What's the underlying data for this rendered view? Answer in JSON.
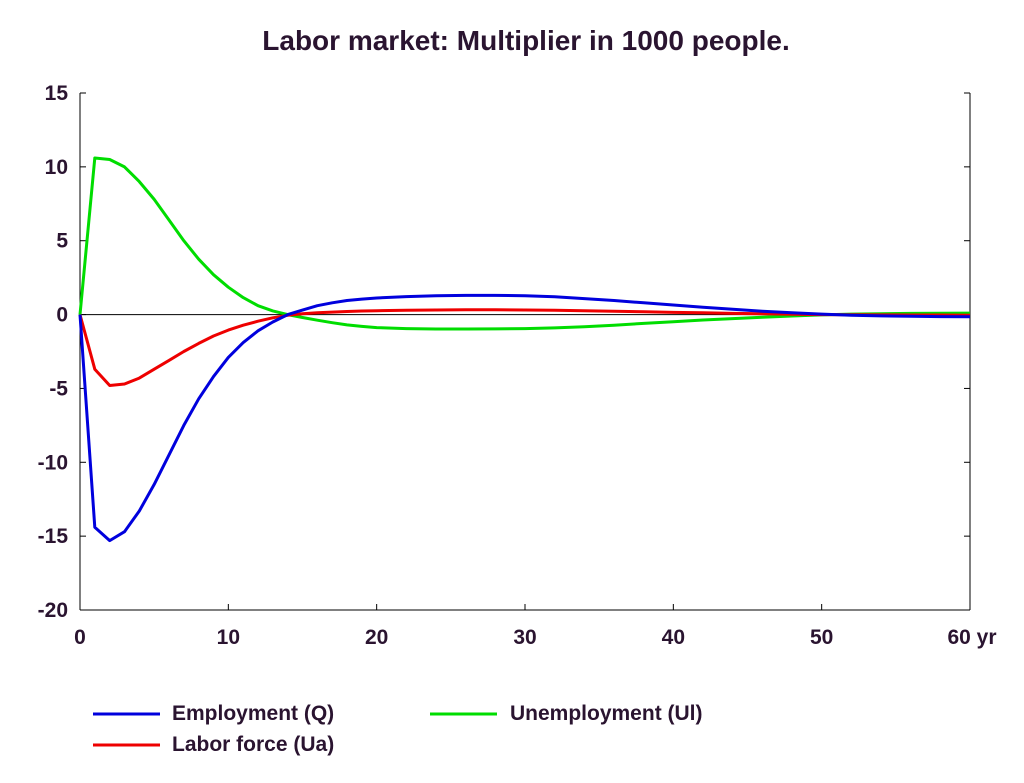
{
  "chart_data": {
    "type": "line",
    "title": "Labor market: Multiplier in 1000 people.",
    "xlabel": "",
    "ylabel": "",
    "xlim": [
      0,
      60
    ],
    "ylim": [
      -20,
      15
    ],
    "x_ticks": [
      "0",
      "10",
      "20",
      "30",
      "40",
      "50",
      "60 yr"
    ],
    "y_ticks": [
      "15",
      "10",
      "5",
      "0",
      "-5",
      "-10",
      "-15",
      "-20"
    ],
    "grid": false,
    "legend_position": "bottom-left",
    "x": [
      0,
      1,
      2,
      3,
      4,
      5,
      6,
      7,
      8,
      9,
      10,
      11,
      12,
      13,
      14,
      15,
      16,
      17,
      18,
      19,
      20,
      22,
      24,
      26,
      28,
      30,
      32,
      34,
      36,
      38,
      40,
      42,
      44,
      46,
      48,
      50,
      52,
      54,
      56,
      58,
      60
    ],
    "series": [
      {
        "name": "Employment (Q)",
        "color": "#0000dd",
        "values": [
          0,
          -14.4,
          -15.3,
          -14.7,
          -13.3,
          -11.5,
          -9.5,
          -7.5,
          -5.7,
          -4.2,
          -2.9,
          -1.9,
          -1.1,
          -0.5,
          0.0,
          0.3,
          0.6,
          0.8,
          0.95,
          1.05,
          1.12,
          1.22,
          1.28,
          1.3,
          1.3,
          1.28,
          1.2,
          1.08,
          0.95,
          0.8,
          0.65,
          0.5,
          0.36,
          0.23,
          0.12,
          0.03,
          -0.04,
          -0.09,
          -0.12,
          -0.14,
          -0.15
        ]
      },
      {
        "name": "Labor force (Ua)",
        "color": "#ee0000",
        "values": [
          0,
          -3.7,
          -4.8,
          -4.7,
          -4.3,
          -3.7,
          -3.1,
          -2.5,
          -1.95,
          -1.45,
          -1.05,
          -0.72,
          -0.45,
          -0.22,
          -0.05,
          0.05,
          0.12,
          0.17,
          0.21,
          0.24,
          0.26,
          0.29,
          0.31,
          0.32,
          0.32,
          0.31,
          0.29,
          0.26,
          0.23,
          0.19,
          0.15,
          0.12,
          0.08,
          0.05,
          0.02,
          0.0,
          -0.01,
          -0.02,
          -0.03,
          -0.03,
          -0.04
        ]
      },
      {
        "name": "Unemployment (Ul)",
        "color": "#00dd00",
        "values": [
          0,
          10.6,
          10.5,
          10.0,
          9.0,
          7.8,
          6.4,
          5.0,
          3.75,
          2.7,
          1.85,
          1.15,
          0.6,
          0.25,
          0.0,
          -0.2,
          -0.38,
          -0.55,
          -0.7,
          -0.8,
          -0.88,
          -0.95,
          -0.98,
          -0.98,
          -0.97,
          -0.95,
          -0.9,
          -0.82,
          -0.72,
          -0.6,
          -0.48,
          -0.37,
          -0.27,
          -0.18,
          -0.1,
          -0.02,
          0.03,
          0.06,
          0.08,
          0.09,
          0.1
        ]
      }
    ]
  }
}
